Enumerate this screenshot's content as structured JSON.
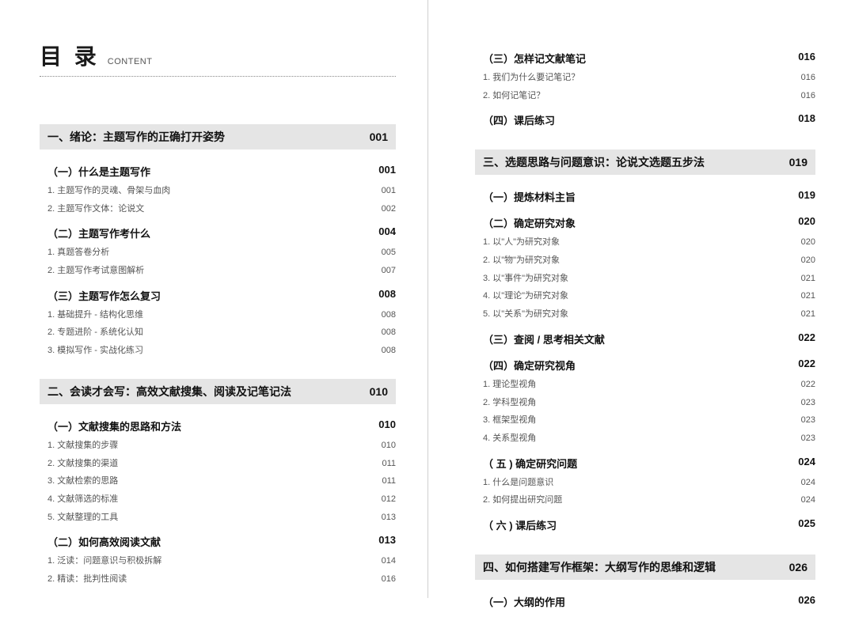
{
  "header": {
    "title_main": "目 录",
    "title_sub": "CONTENT"
  },
  "left": {
    "chapters": [
      {
        "title": "一、绪论：主题写作的正确打开姿势",
        "page": "001",
        "sections": [
          {
            "title": "（一）什么是主题写作",
            "page": "001",
            "items": [
              {
                "label": "1. 主题写作的灵魂、骨架与血肉",
                "page": "001"
              },
              {
                "label": "2. 主题写作文体：论说文",
                "page": "002"
              }
            ]
          },
          {
            "title": "（二）主题写作考什么",
            "page": "004",
            "items": [
              {
                "label": "1. 真题答卷分析",
                "page": "005"
              },
              {
                "label": "2. 主题写作考试意图解析",
                "page": "007"
              }
            ]
          },
          {
            "title": "（三）主题写作怎么复习",
            "page": "008",
            "items": [
              {
                "label": "1. 基础提升 - 结构化思维",
                "page": "008"
              },
              {
                "label": "2. 专题进阶 - 系统化认知",
                "page": "008"
              },
              {
                "label": "3. 模拟写作 - 实战化练习",
                "page": "008"
              }
            ]
          }
        ]
      },
      {
        "title": "二、会读才会写：高效文献搜集、阅读及记笔记法",
        "page": "010",
        "sections": [
          {
            "title": "（一）文献搜集的思路和方法",
            "page": "010",
            "items": [
              {
                "label": "1. 文献搜集的步骤",
                "page": "010"
              },
              {
                "label": "2. 文献搜集的渠道",
                "page": "011"
              },
              {
                "label": "3. 文献检索的思路",
                "page": "011"
              },
              {
                "label": "4. 文献筛选的标准",
                "page": "012"
              },
              {
                "label": "5. 文献整理的工具",
                "page": "013"
              }
            ]
          },
          {
            "title": "（二）如何高效阅读文献",
            "page": "013",
            "items": [
              {
                "label": "1. 泛读：问题意识与积极拆解",
                "page": "014"
              },
              {
                "label": "2. 精读：批判性阅读",
                "page": "016"
              }
            ]
          }
        ]
      }
    ]
  },
  "right": {
    "pre_sections": [
      {
        "title": "（三）怎样记文献笔记",
        "page": "016",
        "items": [
          {
            "label": "1. 我们为什么要记笔记？",
            "page": "016"
          },
          {
            "label": "2. 如何记笔记？",
            "page": "016"
          }
        ]
      },
      {
        "title": "（四）课后练习",
        "page": "018",
        "items": []
      }
    ],
    "chapters": [
      {
        "title": "三、选题思路与问题意识：论说文选题五步法",
        "page": "019",
        "sections": [
          {
            "title": "（一）提炼材料主旨",
            "page": "019",
            "items": []
          },
          {
            "title": "（二）确定研究对象",
            "page": "020",
            "items": [
              {
                "label": "1. 以\"人\"为研究对象",
                "page": "020"
              },
              {
                "label": "2. 以\"物\"为研究对象",
                "page": "020"
              },
              {
                "label": "3. 以\"事件\"为研究对象",
                "page": "021"
              },
              {
                "label": "4. 以\"理论\"为研究对象",
                "page": "021"
              },
              {
                "label": "5. 以\"关系\"为研究对象",
                "page": "021"
              }
            ]
          },
          {
            "title": "（三）查阅 / 思考相关文献",
            "page": "022",
            "items": []
          },
          {
            "title": "（四）确定研究视角",
            "page": "022",
            "items": [
              {
                "label": "1. 理论型视角",
                "page": "022"
              },
              {
                "label": "2. 学科型视角",
                "page": "023"
              },
              {
                "label": "3. 框架型视角",
                "page": "023"
              },
              {
                "label": "4. 关系型视角",
                "page": "023"
              }
            ]
          },
          {
            "title": "（ 五 ) 确定研究问题",
            "page": "024",
            "items": [
              {
                "label": "1. 什么是问题意识",
                "page": "024"
              },
              {
                "label": "2. 如何提出研究问题",
                "page": "024"
              }
            ]
          },
          {
            "title": "（ 六 ) 课后练习",
            "page": "025",
            "items": []
          }
        ]
      },
      {
        "title": "四、如何搭建写作框架：大纲写作的思维和逻辑",
        "page": "026",
        "sections": [
          {
            "title": "（一）大纲的作用",
            "page": "026",
            "items": []
          }
        ]
      }
    ]
  }
}
